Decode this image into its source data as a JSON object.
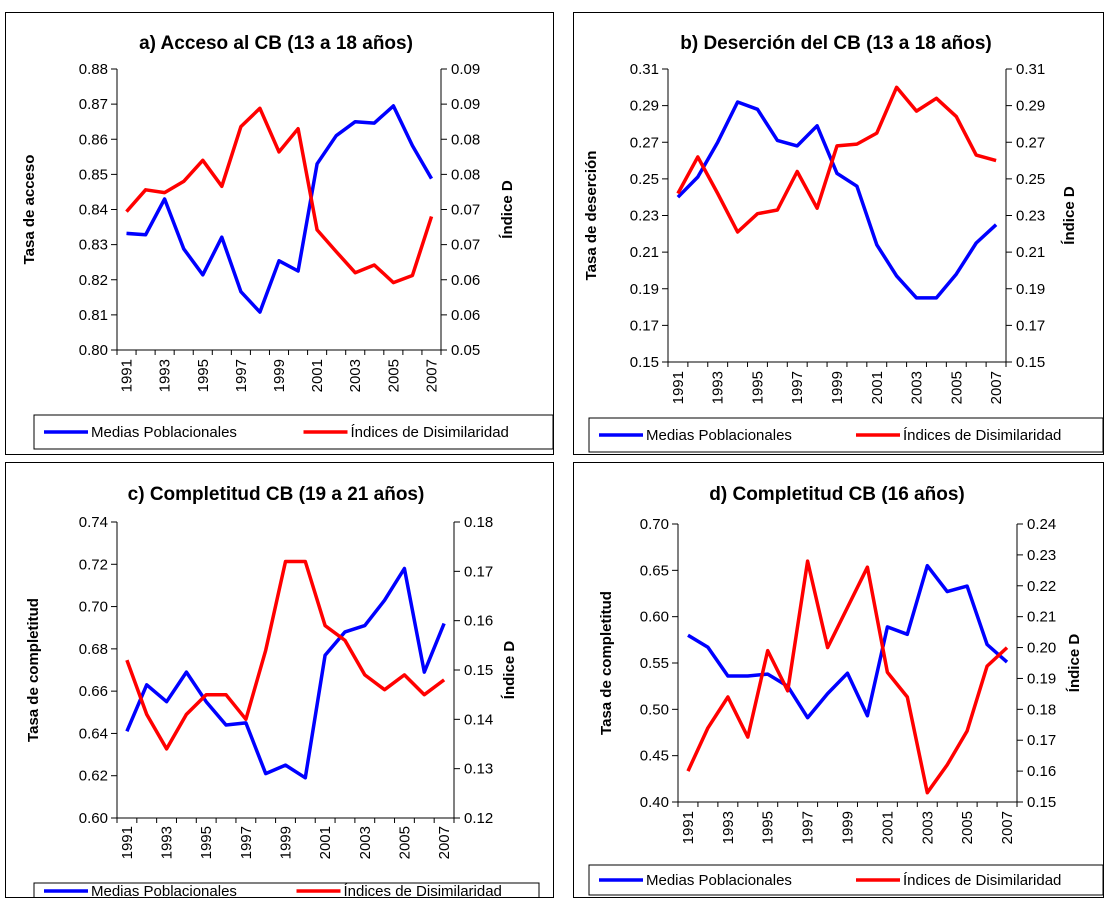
{
  "colors": {
    "series_left": "#0000ff",
    "series_right": "#ff0000",
    "axis": "#000000"
  },
  "chart_data": [
    {
      "type": "line",
      "title": "a) Acceso al CB (13 a 18 años)",
      "ylabel": "Tasa de acceso",
      "y2label": "Índice D",
      "ylim": [
        0.8,
        0.88
      ],
      "yticks": [
        "0.80",
        "0.81",
        "0.82",
        "0.83",
        "0.84",
        "0.85",
        "0.86",
        "0.87",
        "0.88"
      ],
      "y2lim": [
        0.05,
        0.09
      ],
      "y2ticks": [
        "0.05",
        "0.06",
        "0.06",
        "0.07",
        "0.07",
        "0.08",
        "0.08",
        "0.09",
        "0.09"
      ],
      "xlabels": [
        "1991",
        "1993",
        "1995",
        "1997",
        "1999",
        "2001",
        "2003",
        "2005",
        "2007"
      ],
      "x": [
        1991,
        1992,
        1993,
        1994,
        1995,
        1996,
        1997,
        1998,
        1999,
        2000,
        2001,
        2002,
        2003,
        2004,
        2005,
        2006,
        2007
      ],
      "legend": [
        "Medias Poblacionales",
        "Índices de Disimilaridad"
      ],
      "legend_position": "bottom",
      "series": [
        {
          "name": "Medias Poblacionales",
          "axis": "left",
          "values": [
            0.8332,
            0.8328,
            0.843,
            0.8288,
            0.8214,
            0.8321,
            0.8166,
            0.8108,
            0.8254,
            0.8225,
            0.853,
            0.861,
            0.865,
            0.8646,
            0.8695,
            0.8582,
            0.8488
          ]
        },
        {
          "name": "Índices de Disimilaridad",
          "axis": "right",
          "values": [
            0.0697,
            0.0728,
            0.0724,
            0.074,
            0.077,
            0.0733,
            0.0818,
            0.0844,
            0.0782,
            0.0815,
            0.0671,
            0.064,
            0.061,
            0.0621,
            0.0596,
            0.0606,
            0.069
          ]
        }
      ]
    },
    {
      "type": "line",
      "title": "b) Deserción del CB (13 a 18 años)",
      "ylabel": "Tasa de deserción",
      "y2label": "Índice D",
      "ylim": [
        0.15,
        0.31
      ],
      "yticks": [
        "0.15",
        "0.17",
        "0.19",
        "0.21",
        "0.23",
        "0.25",
        "0.27",
        "0.29",
        "0.31"
      ],
      "y2lim": [
        0.15,
        0.31
      ],
      "y2ticks": [
        "0.15",
        "0.17",
        "0.19",
        "0.21",
        "0.23",
        "0.25",
        "0.27",
        "0.29",
        "0.31"
      ],
      "xlabels": [
        "1991",
        "1993",
        "1995",
        "1997",
        "1999",
        "2001",
        "2003",
        "2005",
        "2007"
      ],
      "x": [
        1991,
        1992,
        1993,
        1994,
        1995,
        1996,
        1997,
        1998,
        1999,
        2000,
        2001,
        2002,
        2003,
        2004,
        2005,
        2006,
        2007
      ],
      "legend": [
        "Medias Poblacionales",
        "Índices de Disimilaridad"
      ],
      "legend_position": "bottom",
      "series": [
        {
          "name": "Medias Poblacionales",
          "axis": "left",
          "values": [
            0.24,
            0.251,
            0.27,
            0.292,
            0.288,
            0.271,
            0.268,
            0.279,
            0.253,
            0.246,
            0.214,
            0.197,
            0.185,
            0.185,
            0.198,
            0.215,
            0.225
          ]
        },
        {
          "name": "Índices de Disimilaridad",
          "axis": "right",
          "values": [
            0.242,
            0.262,
            0.242,
            0.221,
            0.231,
            0.233,
            0.254,
            0.234,
            0.268,
            0.269,
            0.275,
            0.3,
            0.287,
            0.294,
            0.284,
            0.263,
            0.26
          ]
        }
      ]
    },
    {
      "type": "line",
      "title": "c) Completitud CB (19 a 21 años)",
      "ylabel": "Tasa de completitud",
      "y2label": "Índice D",
      "ylim": [
        0.6,
        0.74
      ],
      "yticks": [
        "0.60",
        "0.62",
        "0.64",
        "0.66",
        "0.68",
        "0.70",
        "0.72",
        "0.74"
      ],
      "y2lim": [
        0.12,
        0.18
      ],
      "y2ticks": [
        "0.12",
        "0.13",
        "0.14",
        "0.15",
        "0.16",
        "0.17",
        "0.18"
      ],
      "xlabels": [
        "1991",
        "1993",
        "1995",
        "1997",
        "1999",
        "2001",
        "2003",
        "2005",
        "2007"
      ],
      "x": [
        1991,
        1992,
        1993,
        1994,
        1995,
        1996,
        1997,
        1998,
        1999,
        2000,
        2001,
        2002,
        2003,
        2004,
        2005,
        2006,
        2007
      ],
      "legend": [
        "Medias Poblacionales",
        "Índices de Disimilaridad"
      ],
      "legend_position": "bottom",
      "series": [
        {
          "name": "Medias Poblacionales",
          "axis": "left",
          "values": [
            0.641,
            0.663,
            0.655,
            0.669,
            0.655,
            0.644,
            0.645,
            0.621,
            0.625,
            0.619,
            0.677,
            0.688,
            0.691,
            0.703,
            0.718,
            0.669,
            0.692
          ]
        },
        {
          "name": "Índices de Disimilaridad",
          "axis": "right",
          "values": [
            0.152,
            0.141,
            0.134,
            0.141,
            0.145,
            0.145,
            0.14,
            0.154,
            0.172,
            0.172,
            0.159,
            0.156,
            0.149,
            0.146,
            0.149,
            0.145,
            0.148
          ]
        }
      ]
    },
    {
      "type": "line",
      "title": "d) Completitud CB (16 años)",
      "ylabel": "Tasa de completitud",
      "y2label": "Índice D",
      "ylim": [
        0.4,
        0.7
      ],
      "yticks": [
        "0.40",
        "0.45",
        "0.50",
        "0.55",
        "0.60",
        "0.65",
        "0.70"
      ],
      "y2lim": [
        0.15,
        0.24
      ],
      "y2ticks": [
        "0.15",
        "0.16",
        "0.17",
        "0.18",
        "0.19",
        "0.20",
        "0.21",
        "0.22",
        "0.23",
        "0.24"
      ],
      "xlabels": [
        "1991",
        "1993",
        "1995",
        "1997",
        "1999",
        "2001",
        "2003",
        "2005",
        "2007"
      ],
      "x": [
        1991,
        1992,
        1993,
        1994,
        1995,
        1996,
        1997,
        1998,
        1999,
        2000,
        2001,
        2002,
        2003,
        2004,
        2005,
        2006,
        2007
      ],
      "legend": [
        "Medias Poblacionales",
        "Índices de Disimilaridad"
      ],
      "legend_position": "bottom",
      "series": [
        {
          "name": "Medias Poblacionales",
          "axis": "left",
          "values": [
            0.58,
            0.567,
            0.536,
            0.536,
            0.538,
            0.525,
            0.491,
            0.517,
            0.539,
            0.493,
            0.589,
            0.581,
            0.655,
            0.627,
            0.633,
            0.57,
            0.551
          ]
        },
        {
          "name": "Índices de Disimilaridad",
          "axis": "right",
          "values": [
            0.16,
            0.174,
            0.184,
            0.171,
            0.199,
            0.186,
            0.228,
            0.2,
            0.213,
            0.226,
            0.192,
            0.184,
            0.153,
            0.162,
            0.173,
            0.194,
            0.2
          ]
        }
      ]
    }
  ]
}
